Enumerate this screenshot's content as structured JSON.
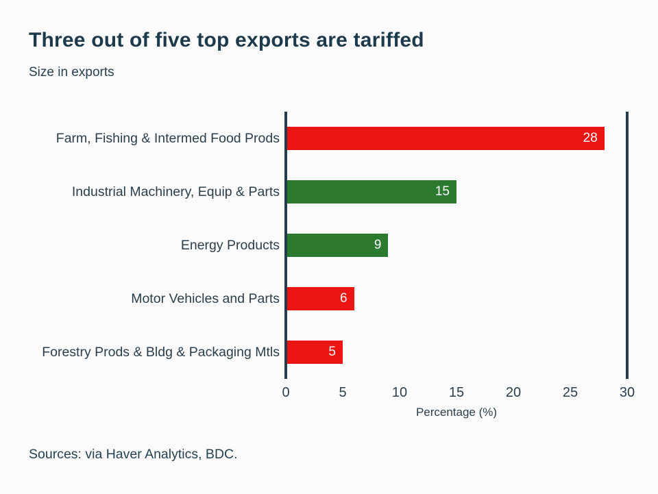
{
  "page": {
    "background": "#fbfbfb"
  },
  "header": {
    "title": "Three out of five top exports are tariffed",
    "subtitle": "Size in exports"
  },
  "footer": {
    "source": "Sources: via Haver Analytics, BDC."
  },
  "chart_data": {
    "type": "bar",
    "orientation": "horizontal",
    "title": "Three out of five top exports are tariffed",
    "subtitle": "Size in exports",
    "categories": [
      "Farm, Fishing & Intermed Food Prods",
      "Industrial Machinery, Equip & Parts",
      "Energy Products",
      "Motor Vehicles and Parts",
      "Forestry Prods & Bldg & Packaging Mtls"
    ],
    "values": [
      28,
      15,
      9,
      6,
      5
    ],
    "bar_colors": [
      "#ed1414",
      "#2b7a2f",
      "#2b7a2f",
      "#ed1414",
      "#ed1414"
    ],
    "tariffed": [
      true,
      false,
      false,
      true,
      true
    ],
    "value_labels": [
      "28",
      "15",
      "9",
      "6",
      "5"
    ],
    "value_label_color": "#ffffff",
    "xlabel": "Percentage (%)",
    "xticks": [
      "0",
      "5",
      "10",
      "15",
      "20",
      "25",
      "30"
    ],
    "xtick_values": [
      0,
      5,
      10,
      15,
      20,
      25,
      30
    ],
    "xlim": [
      0,
      30
    ],
    "grid": false,
    "legend": "none",
    "accent_red": "#ed1414",
    "accent_green": "#2b7a2f",
    "axis_color": "#223d4d"
  }
}
